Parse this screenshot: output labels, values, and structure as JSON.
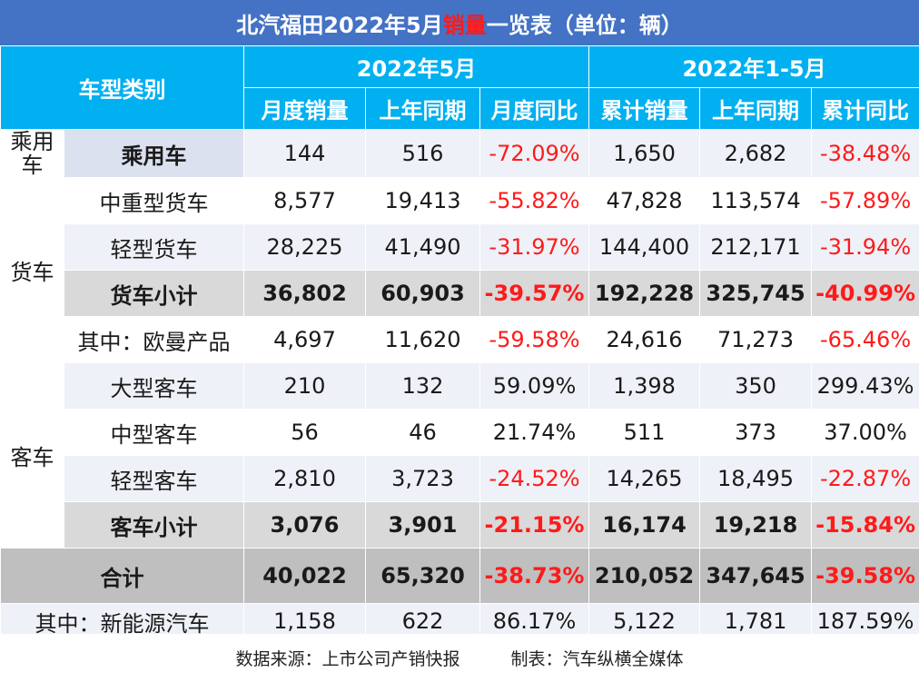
{
  "title": {
    "prefix": "北汽福田2022年5月",
    "highlight": "销量",
    "suffix": "一览表（单位：辆）"
  },
  "header": {
    "category_label": "车型类别",
    "period1": "2022年5月",
    "period2": "2022年1-5月",
    "cols": [
      "月度销量",
      "上年同期",
      "月度同比",
      "累计销量",
      "上年同期",
      "累计同比"
    ]
  },
  "groups": {
    "passenger": "乘用车",
    "truck": "货车",
    "bus": "客车"
  },
  "rows": [
    {
      "name": "乘用车",
      "values": [
        "144",
        "516",
        "-72.09%",
        "1,650",
        "2,682",
        "-38.48%"
      ]
    },
    {
      "name": "中重型货车",
      "values": [
        "8,577",
        "19,413",
        "-55.82%",
        "47,828",
        "113,574",
        "-57.89%"
      ]
    },
    {
      "name": "轻型货车",
      "values": [
        "28,225",
        "41,490",
        "-31.97%",
        "144,400",
        "212,171",
        "-31.94%"
      ]
    },
    {
      "name": "货车小计",
      "values": [
        "36,802",
        "60,903",
        "-39.57%",
        "192,228",
        "325,745",
        "-40.99%"
      ]
    },
    {
      "name": "其中：欧曼产品",
      "values": [
        "4,697",
        "11,620",
        "-59.58%",
        "24,616",
        "71,273",
        "-65.46%"
      ]
    },
    {
      "name": "大型客车",
      "values": [
        "210",
        "132",
        "59.09%",
        "1,398",
        "350",
        "299.43%"
      ]
    },
    {
      "name": "中型客车",
      "values": [
        "56",
        "46",
        "21.74%",
        "511",
        "373",
        "37.00%"
      ]
    },
    {
      "name": "轻型客车",
      "values": [
        "2,810",
        "3,723",
        "-24.52%",
        "14,265",
        "18,495",
        "-22.87%"
      ]
    },
    {
      "name": "客车小计",
      "values": [
        "3,076",
        "3,901",
        "-21.15%",
        "16,174",
        "19,218",
        "-15.84%"
      ]
    },
    {
      "name": "合计",
      "values": [
        "40,022",
        "65,320",
        "-38.73%",
        "210,052",
        "347,645",
        "-39.58%"
      ]
    },
    {
      "name": "其中：新能源汽车",
      "values": [
        "1,158",
        "622",
        "86.17%",
        "5,122",
        "1,781",
        "187.59%"
      ]
    }
  ],
  "footer": {
    "source": "数据来源：上市公司产销快报",
    "maker": "制表：汽车纵横全媒体"
  },
  "colors": {
    "title_bg": "#4472c4",
    "header_bg": "#00b0f0",
    "negative": "#ff1a1a",
    "total_bg": "#d9d9d9",
    "grand_total_bg": "#bfbfbf"
  }
}
